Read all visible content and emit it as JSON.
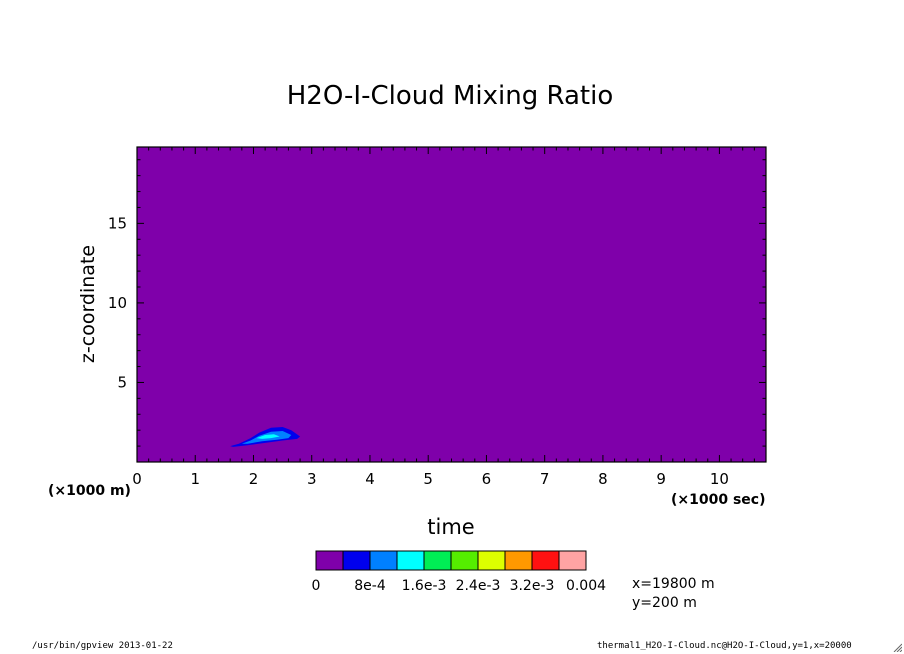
{
  "chart_data": {
    "type": "heatmap",
    "title": "H2O-I-Cloud Mixing Ratio",
    "xlabel": "time",
    "ylabel": "z-coordinate",
    "x_unit": "(×1000 sec)",
    "y_unit": "(×1000 m)",
    "x_ticks": [
      0,
      1,
      2,
      3,
      4,
      5,
      6,
      7,
      8,
      9,
      10
    ],
    "y_ticks": [
      5,
      10,
      15
    ],
    "xlim": [
      0,
      10.8
    ],
    "ylim": [
      0,
      19.8
    ],
    "background_value": 0,
    "contour_levels": [
      0,
      0.0004,
      0.0008,
      0.0012,
      0.0016,
      0.002,
      0.0024,
      0.0028,
      0.0032,
      0.0036,
      0.004
    ],
    "colorbar_labels": [
      "0",
      "8e-4",
      "1.6e-3",
      "2.4e-3",
      "3.2e-3",
      "0.004"
    ],
    "colors": [
      "#7f00aa",
      "#0000ee",
      "#0080ff",
      "#00ffff",
      "#00ee55",
      "#55ee00",
      "#ddff00",
      "#ff9900",
      "#ff1111",
      "#ffa3a3"
    ],
    "features": [
      {
        "level": 1,
        "outline": [
          [
            1.6,
            1.0
          ],
          [
            1.75,
            1.15
          ],
          [
            1.95,
            1.5
          ],
          [
            2.1,
            1.85
          ],
          [
            2.3,
            2.15
          ],
          [
            2.5,
            2.2
          ],
          [
            2.65,
            2.0
          ],
          [
            2.8,
            1.6
          ],
          [
            2.75,
            1.45
          ],
          [
            2.5,
            1.35
          ],
          [
            2.2,
            1.2
          ],
          [
            1.9,
            1.05
          ],
          [
            1.65,
            0.95
          ]
        ]
      },
      {
        "level": 2,
        "outline": [
          [
            1.8,
            1.15
          ],
          [
            1.95,
            1.35
          ],
          [
            2.1,
            1.65
          ],
          [
            2.3,
            1.9
          ],
          [
            2.5,
            1.95
          ],
          [
            2.65,
            1.7
          ],
          [
            2.6,
            1.5
          ],
          [
            2.4,
            1.4
          ],
          [
            2.15,
            1.3
          ],
          [
            1.9,
            1.15
          ]
        ]
      },
      {
        "level": 3,
        "outline": [
          [
            2.05,
            1.5
          ],
          [
            2.2,
            1.7
          ],
          [
            2.35,
            1.75
          ],
          [
            2.45,
            1.6
          ],
          [
            2.3,
            1.5
          ],
          [
            2.15,
            1.45
          ]
        ]
      }
    ]
  },
  "annotations": {
    "x_pos": "x=19800 m",
    "y_pos": "y=200 m"
  },
  "footer": {
    "left": "/usr/bin/gpview  2013-01-22",
    "right": "thermal1_H2O-I-Cloud.nc@H2O-I-Cloud,y=1,x=20000"
  },
  "icons": {
    "resize_grip": "resize-grip-icon"
  }
}
